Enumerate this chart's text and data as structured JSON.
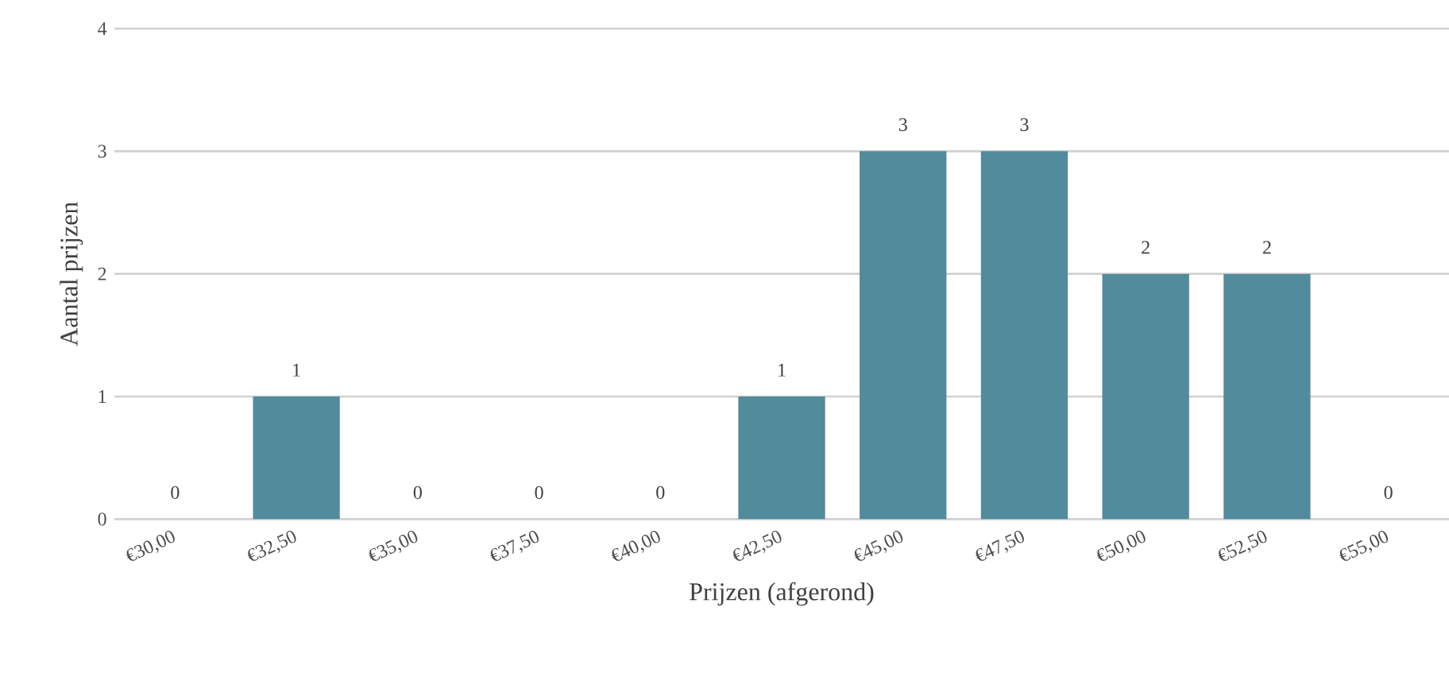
{
  "chart_data": {
    "type": "bar",
    "xlabel": "Prijzen (afgerond)",
    "ylabel": "Aantal prijzen",
    "categories": [
      "€30,00",
      "€32,50",
      "€35,00",
      "€37,50",
      "€40,00",
      "€42,50",
      "€45,00",
      "€47,50",
      "€50,00",
      "€52,50",
      "€55,00"
    ],
    "values": [
      0,
      1,
      0,
      0,
      0,
      1,
      3,
      3,
      2,
      2,
      0
    ],
    "color": "#528b9b",
    "ylim": [
      0,
      4
    ],
    "yticks": [
      0,
      1,
      2,
      3,
      4
    ],
    "grid": "y",
    "data_labels": true
  }
}
